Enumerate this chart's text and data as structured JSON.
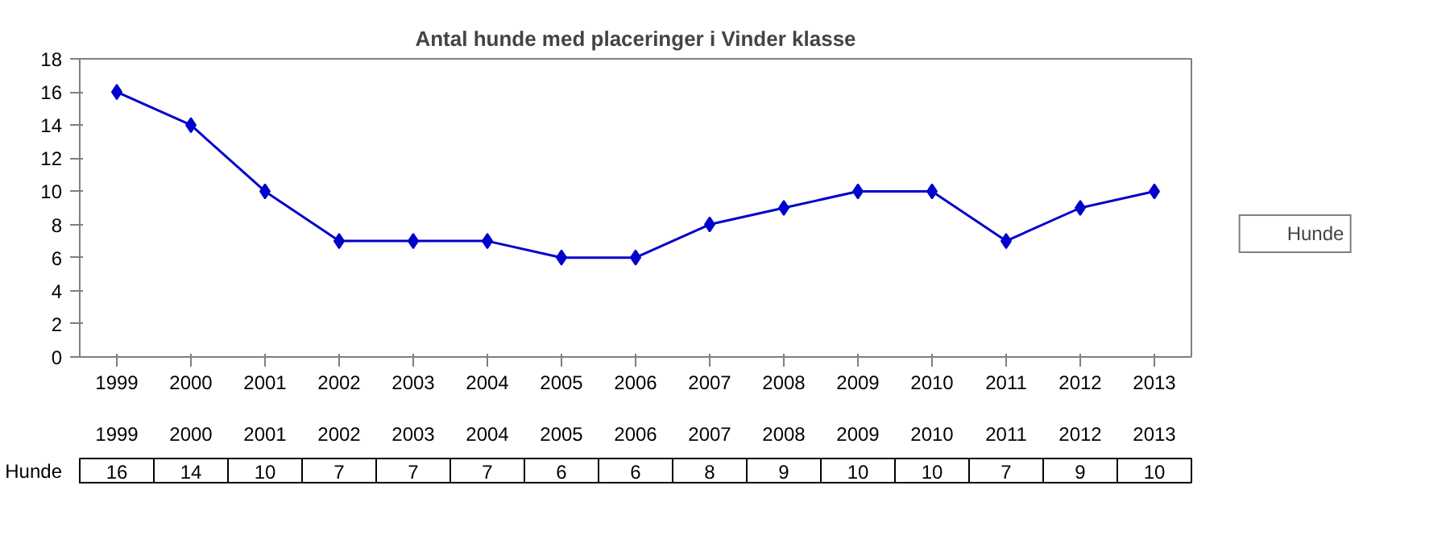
{
  "chart_data": {
    "type": "line",
    "title": "Antal hunde med placeringer i Vinder klasse",
    "categories": [
      "1999",
      "2000",
      "2001",
      "2002",
      "2003",
      "2004",
      "2005",
      "2006",
      "2007",
      "2008",
      "2009",
      "2010",
      "2011",
      "2012",
      "2013"
    ],
    "series": [
      {
        "name": "Hunde",
        "color": "#0000cc",
        "values": [
          16,
          14,
          10,
          7,
          7,
          7,
          6,
          6,
          8,
          9,
          10,
          10,
          7,
          9,
          10
        ]
      }
    ],
    "ylim": [
      0,
      18
    ],
    "yticks": [
      0,
      2,
      4,
      6,
      8,
      10,
      12,
      14,
      16,
      18
    ],
    "grid": false,
    "legend": "right",
    "marker": "diamond",
    "line_style": "solid",
    "data_labels": true
  }
}
